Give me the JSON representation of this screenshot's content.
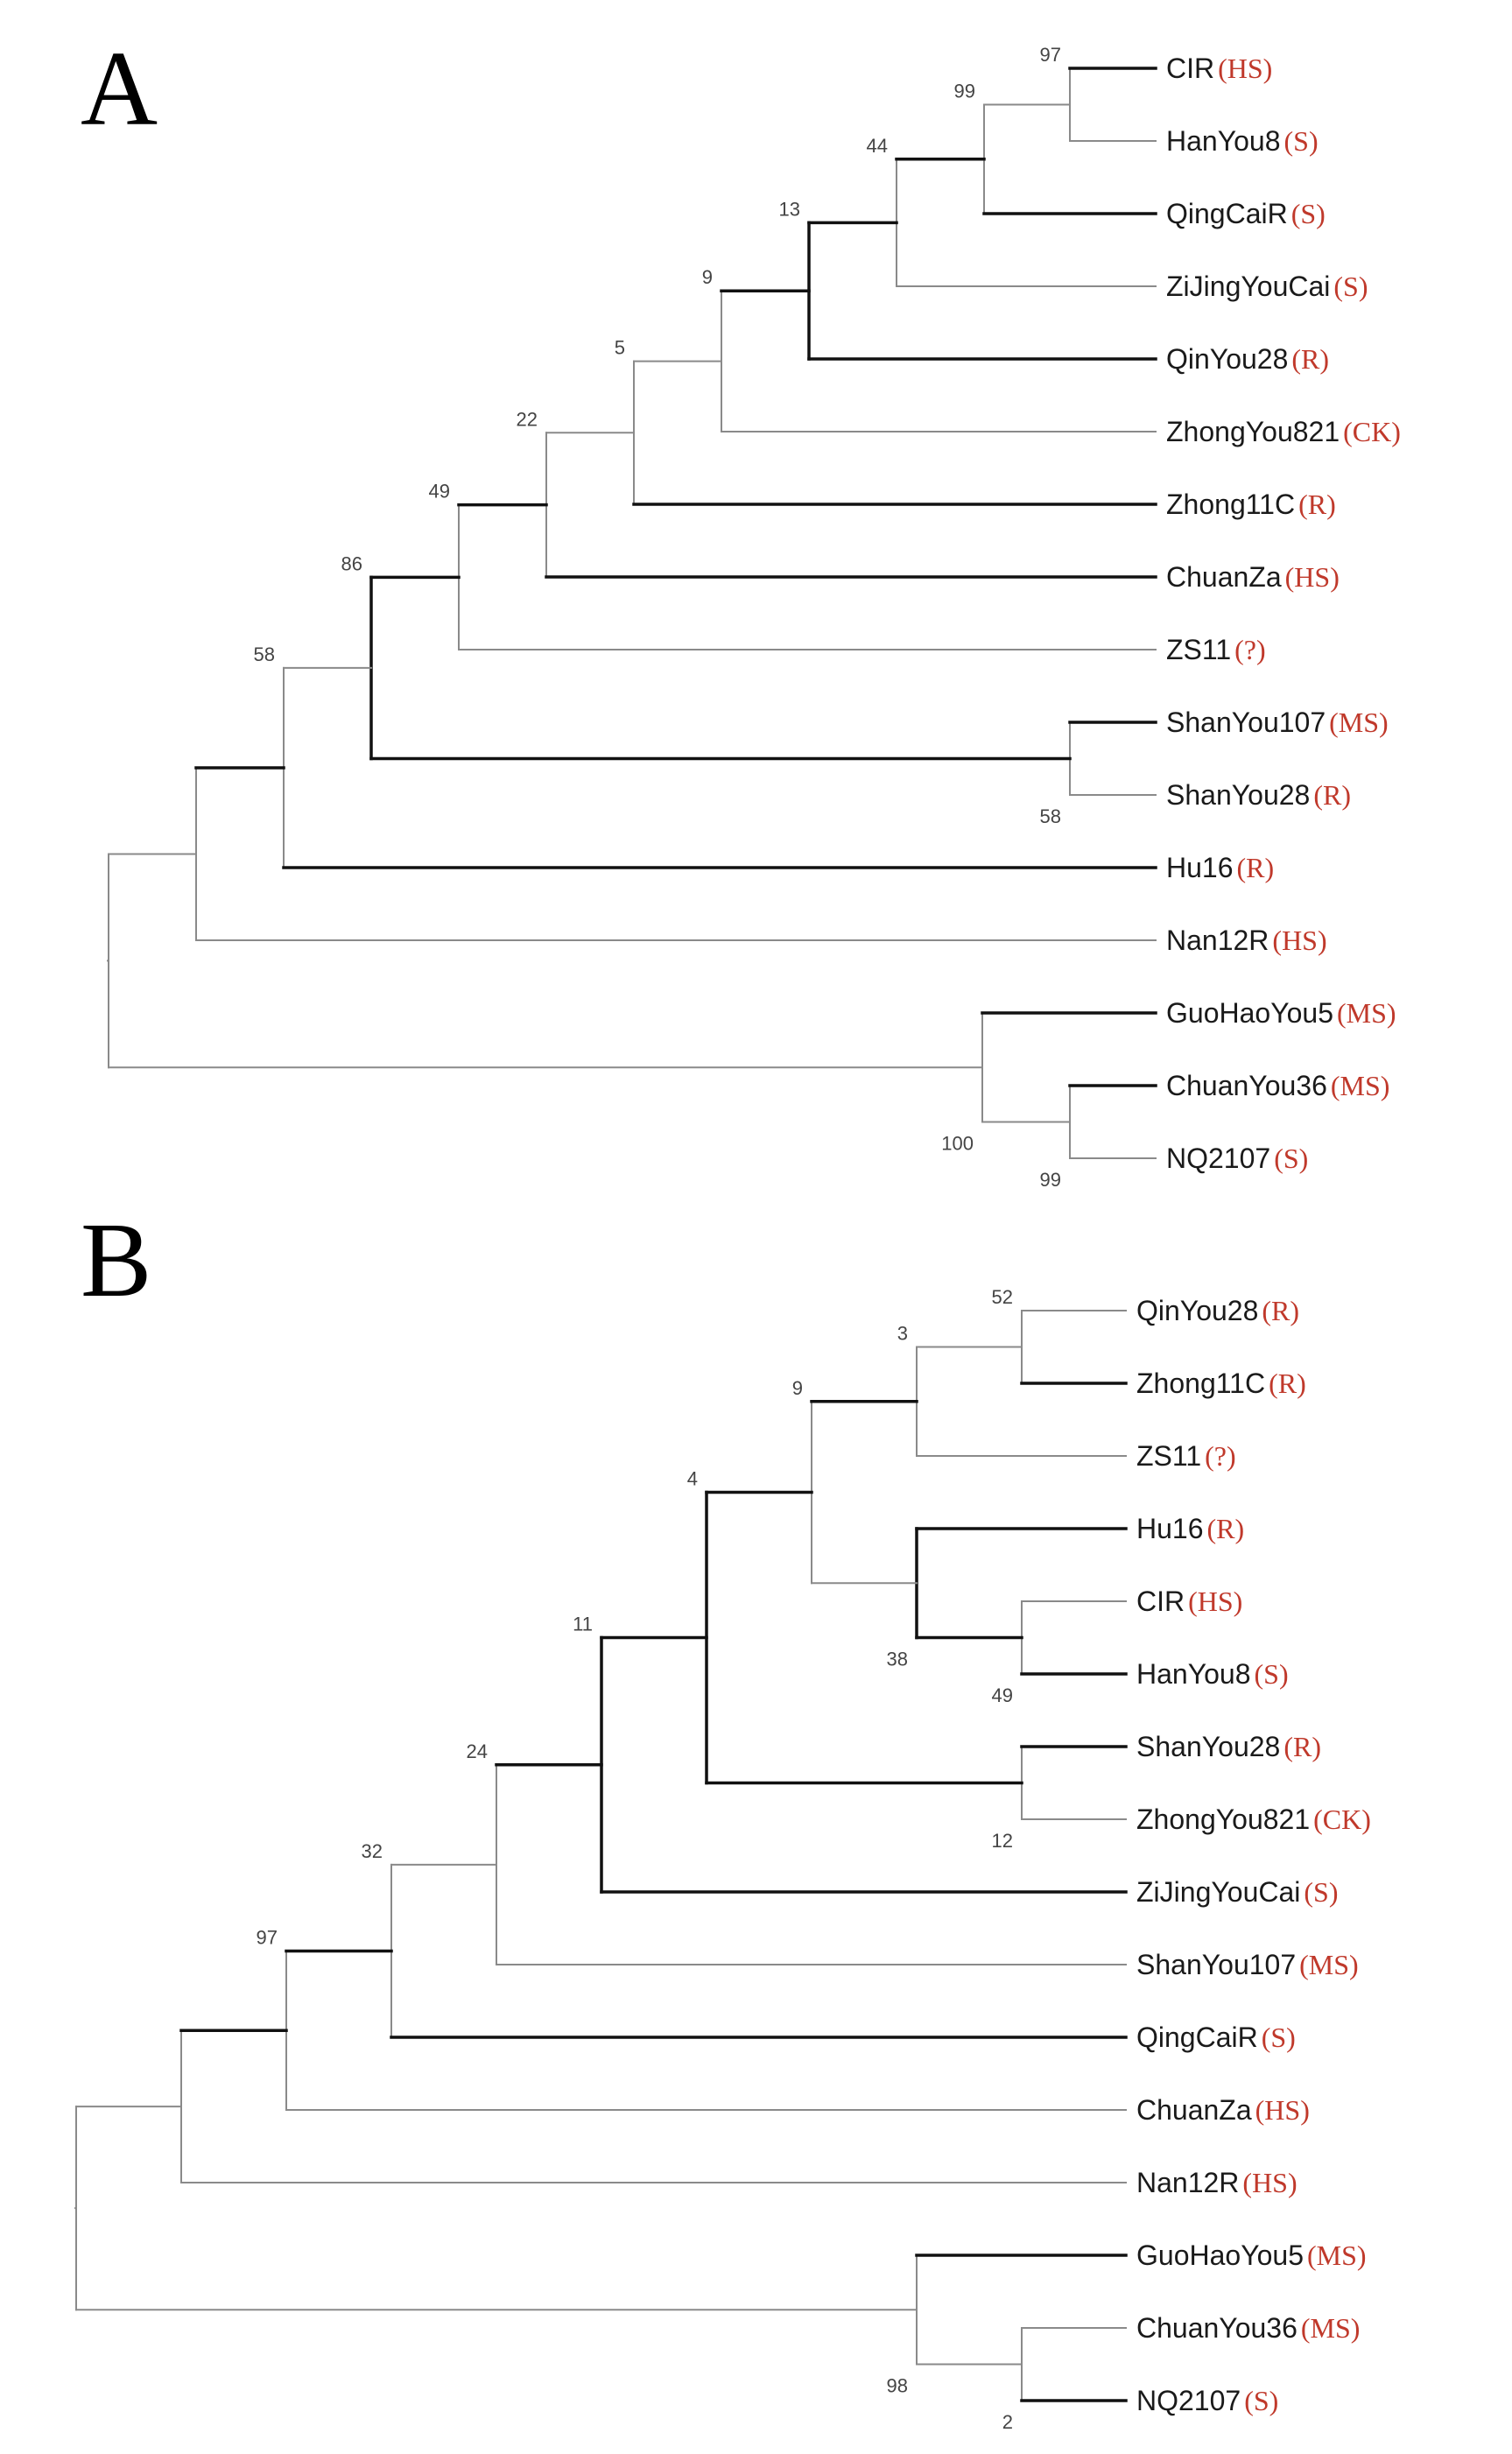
{
  "figure": {
    "colors": {
      "label": "#1a1a1a",
      "class_label": "#c0392b",
      "thick_branch": "#111111",
      "thin_branch": "#8a8a8a",
      "bootstrap": "#444444"
    },
    "panels": [
      {
        "id": "A",
        "letter": "A",
        "taxa": [
          {
            "name": "CIR",
            "class": "(HS)"
          },
          {
            "name": "HanYou8",
            "class": "(S)"
          },
          {
            "name": "QingCaiR",
            "class": "(S)"
          },
          {
            "name": "ZiJingYouCai",
            "class": "(S)"
          },
          {
            "name": "QinYou28",
            "class": "(R)"
          },
          {
            "name": "ZhongYou821",
            "class": "(CK)"
          },
          {
            "name": "Zhong11C",
            "class": "(R)"
          },
          {
            "name": "ChuanZa",
            "class": "(HS)"
          },
          {
            "name": "ZS11",
            "class": "(?)"
          },
          {
            "name": "ShanYou107",
            "class": "(MS)"
          },
          {
            "name": "ShanYou28",
            "class": "(R)"
          },
          {
            "name": "Hu16",
            "class": "(R)"
          },
          {
            "name": "Nan12R",
            "class": "(HS)"
          },
          {
            "name": "GuoHaoYou5",
            "class": "(MS)"
          },
          {
            "name": "ChuanYou36",
            "class": "(MS)"
          },
          {
            "name": "NQ2107",
            "class": "(S)"
          }
        ],
        "bootstrap_values": [
          "97",
          "99",
          "44",
          "13",
          "9",
          "5",
          "22",
          "49",
          "86",
          "58",
          "58",
          "100",
          "99"
        ]
      },
      {
        "id": "B",
        "letter": "B",
        "taxa": [
          {
            "name": "QinYou28",
            "class": "(R)"
          },
          {
            "name": "Zhong11C",
            "class": "(R)"
          },
          {
            "name": "ZS11",
            "class": "(?)"
          },
          {
            "name": "Hu16",
            "class": "(R)"
          },
          {
            "name": "CIR",
            "class": "(HS)"
          },
          {
            "name": "HanYou8",
            "class": "(S)"
          },
          {
            "name": "ShanYou28",
            "class": "(R)"
          },
          {
            "name": "ZhongYou821",
            "class": "(CK)"
          },
          {
            "name": "ZiJingYouCai",
            "class": "(S)"
          },
          {
            "name": "ShanYou107",
            "class": "(MS)"
          },
          {
            "name": "QingCaiR",
            "class": "(S)"
          },
          {
            "name": "ChuanZa",
            "class": "(HS)"
          },
          {
            "name": "Nan12R",
            "class": "(HS)"
          },
          {
            "name": "GuoHaoYou5",
            "class": "(MS)"
          },
          {
            "name": "ChuanYou36",
            "class": "(MS)"
          },
          {
            "name": "NQ2107",
            "class": "(S)"
          }
        ],
        "bootstrap_values": [
          "52",
          "3",
          "9",
          "38",
          "49",
          "4",
          "12",
          "11",
          "24",
          "32",
          "97",
          "98",
          "2"
        ]
      }
    ]
  }
}
